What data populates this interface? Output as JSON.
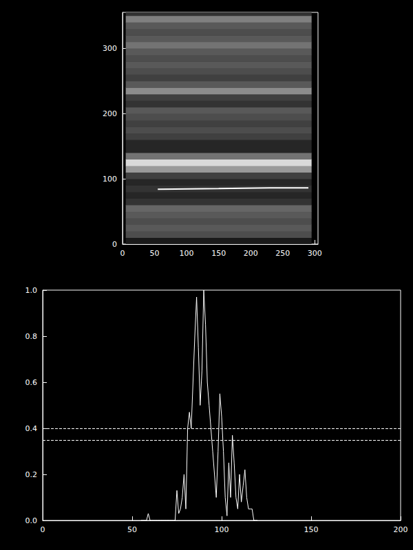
{
  "chart_data": [
    {
      "type": "image",
      "xlim": [
        0,
        305
      ],
      "ylim": [
        0,
        355
      ],
      "xticks": [
        0,
        50,
        100,
        150,
        200,
        250,
        300
      ],
      "yticks": [
        0,
        100,
        200,
        300
      ],
      "image": {
        "x": [
          5,
          295
        ],
        "y_edges": [
          0,
          10,
          20,
          30,
          40,
          50,
          60,
          70,
          80,
          90,
          100,
          110,
          120,
          130,
          140,
          150,
          160,
          170,
          180,
          190,
          200,
          210,
          220,
          230,
          240,
          250,
          260,
          270,
          280,
          290,
          300,
          310,
          320,
          330,
          340,
          350,
          355
        ],
        "intensity": [
          0.1,
          0.3,
          0.35,
          0.3,
          0.35,
          0.4,
          0.2,
          0.15,
          0.2,
          0.15,
          0.25,
          0.6,
          0.85,
          0.45,
          0.15,
          0.15,
          0.25,
          0.3,
          0.25,
          0.3,
          0.35,
          0.2,
          0.25,
          0.55,
          0.35,
          0.25,
          0.3,
          0.35,
          0.3,
          0.35,
          0.45,
          0.35,
          0.3,
          0.35,
          0.5,
          0.2
        ],
        "crange": [
          0,
          1
        ]
      },
      "series": [
        {
          "type": "line",
          "color": "#ffffff",
          "x": [
            55,
            150,
            230,
            290
          ],
          "values": [
            84,
            85,
            86,
            86
          ]
        }
      ]
    },
    {
      "type": "line",
      "xlim": [
        0,
        200
      ],
      "ylim": [
        0,
        1
      ],
      "xticks": [
        0,
        50,
        100,
        150,
        200
      ],
      "yticks": [
        {
          "value": 0,
          "label": "0.0"
        },
        0.2,
        0.4,
        0.6,
        0.8,
        {
          "value": 1,
          "label": "1.0"
        }
      ],
      "color": "#ffffff",
      "x": [
        55,
        56,
        57,
        58,
        59,
        60,
        61,
        62,
        63,
        64,
        65,
        66,
        67,
        68,
        69,
        70,
        71,
        72,
        73,
        74,
        75,
        76,
        77,
        78,
        79,
        80,
        81,
        82,
        83,
        84,
        85,
        86,
        87,
        88,
        89,
        90,
        91,
        92,
        93,
        94,
        95,
        96,
        97,
        98,
        99,
        100,
        101,
        102,
        103,
        104,
        105,
        106,
        107,
        108,
        109,
        110,
        111,
        112,
        113,
        114,
        115,
        116,
        117,
        118,
        119,
        120
      ],
      "values": [
        0,
        0,
        0,
        0,
        0.03,
        0,
        0,
        0,
        0,
        0,
        0,
        0,
        0,
        0,
        0,
        0,
        0,
        0,
        0,
        0,
        0.13,
        0.03,
        0.05,
        0.1,
        0.2,
        0.05,
        0.4,
        0.47,
        0.4,
        0.6,
        0.8,
        0.97,
        0.75,
        0.5,
        0.65,
        1.0,
        0.85,
        0.6,
        0.5,
        0.4,
        0.3,
        0.2,
        0.1,
        0.3,
        0.55,
        0.45,
        0.3,
        0.1,
        0.02,
        0.25,
        0.1,
        0.37,
        0.25,
        0.1,
        0.05,
        0.2,
        0.08,
        0.15,
        0.22,
        0.1,
        0.05,
        0.05,
        0.05,
        0,
        0,
        0
      ],
      "hlines": {
        "values": [
          0.4,
          0.35
        ],
        "line_style": "dashed",
        "color": "#ffffff"
      }
    }
  ]
}
